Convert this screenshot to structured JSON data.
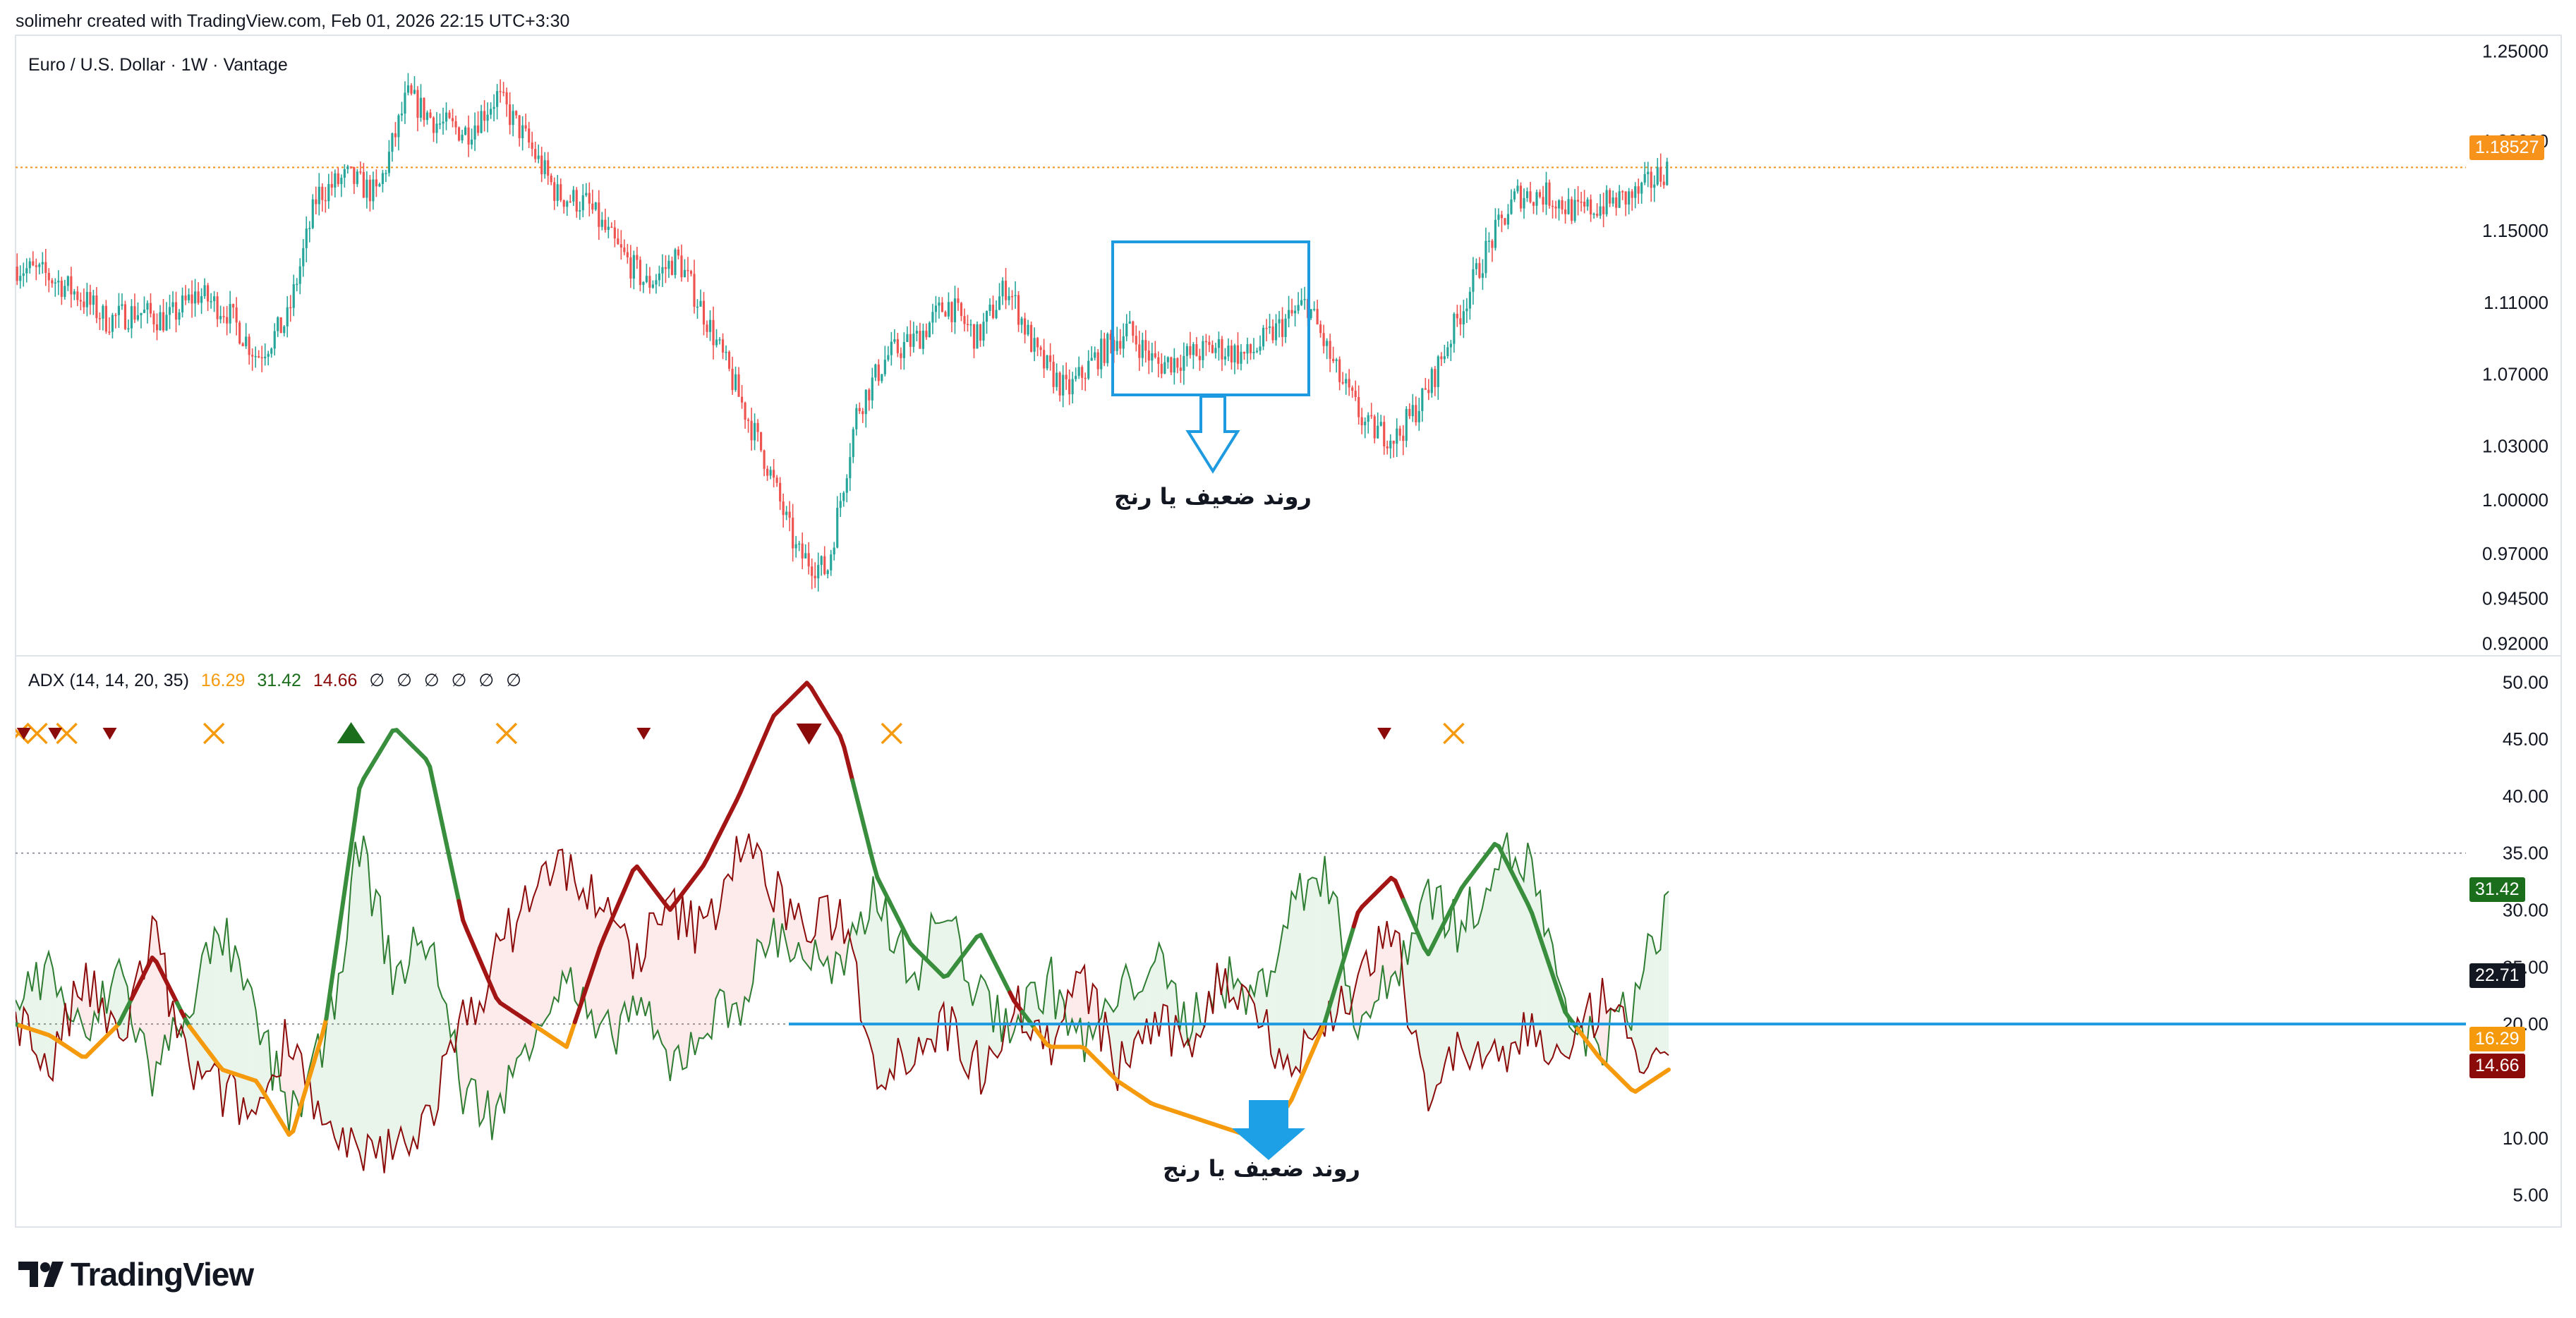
{
  "header": {
    "author_line": "solimehr created with TradingView.com, Feb 01, 2026 22:15 UTC+3:30"
  },
  "price_pane": {
    "symbol_line": "Euro / U.S. Dollar · 1W · Vantage"
  },
  "indicator_pane": {
    "name": "ADX (14, 14, 20, 35)",
    "values": [
      "16.29",
      "31.42",
      "14.66"
    ],
    "value_colors": [
      "#f59a0c",
      "#1b6e1b",
      "#8b0b0b"
    ],
    "empty_slots": [
      "∅",
      "∅",
      "∅",
      "∅",
      "∅",
      "∅"
    ]
  },
  "annotations": {
    "range_text_top": "روند ضعیف یا رنج",
    "range_text_bottom": "روند ضعیف یا رنج"
  },
  "brand": {
    "logo_text": "TradingView"
  },
  "colors": {
    "up": "#26a69a",
    "down": "#ef5350",
    "adx_trend_up": "#1b6e1b",
    "adx_trend_down": "#8b0b0b",
    "adx_weak": "#f59a0c",
    "box": "#1e9be0",
    "level_line": "#1e9be0"
  },
  "chart_data": [
    {
      "type": "candlestick",
      "title": "Euro / U.S. Dollar · 1W · Vantage",
      "y_ticks": [
        "1.25000",
        "1.20000",
        "1.15000",
        "1.11000",
        "1.07000",
        "1.03000",
        "1.00000",
        "0.97000",
        "0.94500",
        "0.92000"
      ],
      "ylim": [
        0.915,
        1.255
      ],
      "last_price": "1.18527",
      "path": [
        1.13,
        1.125,
        1.115,
        1.1,
        1.105,
        1.1,
        1.115,
        1.105,
        1.08,
        1.1,
        1.17,
        1.18,
        1.17,
        1.225,
        1.21,
        1.205,
        1.225,
        1.2,
        1.17,
        1.165,
        1.14,
        1.12,
        1.135,
        1.1,
        1.06,
        1.02,
        0.97,
        0.96,
        1.05,
        1.08,
        1.09,
        1.11,
        1.09,
        1.12,
        1.08,
        1.06,
        1.08,
        1.095,
        1.075,
        1.08,
        1.085,
        1.08,
        1.095,
        1.11,
        1.07,
        1.04,
        1.035,
        1.06,
        1.1,
        1.14,
        1.17,
        1.17,
        1.16,
        1.165,
        1.17,
        1.185
      ]
    },
    {
      "type": "line",
      "title": "ADX (14, 14, 20, 35)",
      "y_ticks": [
        "50.00",
        "45.00",
        "40.00",
        "35.00",
        "30.00",
        "25.00",
        "20.00",
        "10.00",
        "5.00"
      ],
      "ylim": [
        2.5,
        52
      ],
      "level_labels": [
        "31.42",
        "22.71",
        "16.29",
        "14.66"
      ],
      "series": [
        {
          "name": "",
          "values": [
            20,
            19,
            17,
            20,
            26,
            20,
            16,
            15,
            10,
            20,
            41,
            46,
            43,
            29,
            22,
            20,
            18,
            27,
            34,
            30,
            34,
            40,
            47,
            50,
            45,
            33,
            27,
            24,
            28,
            22,
            18,
            18,
            15,
            13,
            12,
            11,
            10,
            13,
            20,
            30,
            33,
            26,
            32,
            36,
            30,
            21,
            17,
            14,
            16
          ]
        },
        {
          "name": "",
          "values": [
            22,
            25,
            18,
            25,
            15,
            22,
            28,
            20,
            12,
            18,
            36,
            24,
            28,
            14,
            12,
            20,
            24,
            18,
            22,
            16,
            20,
            22,
            28,
            26,
            24,
            32,
            24,
            30,
            22,
            20,
            24,
            18,
            22,
            26,
            20,
            24,
            22,
            30,
            34,
            20,
            24,
            32,
            28,
            35,
            34,
            20,
            18,
            22,
            31
          ]
        },
        {
          "name": "",
          "values": [
            21,
            16,
            24,
            18,
            28,
            16,
            14,
            12,
            20,
            10,
            8,
            9,
            12,
            20,
            26,
            32,
            34,
            30,
            26,
            30,
            28,
            36,
            32,
            28,
            30,
            16,
            18,
            20,
            16,
            22,
            18,
            24,
            16,
            20,
            18,
            24,
            22,
            16,
            20,
            24,
            28,
            14,
            18,
            16,
            20,
            16,
            22,
            18,
            15
          ]
        }
      ],
      "markers": [
        {
          "kind": "cross",
          "x_frac": 0.002,
          "y": 45.5
        },
        {
          "kind": "cross",
          "x_frac": 0.013,
          "y": 45.5
        },
        {
          "kind": "cross",
          "x_frac": 0.031,
          "y": 45.5
        },
        {
          "kind": "down",
          "x_frac": 0.005,
          "y": 45.5
        },
        {
          "kind": "down",
          "x_frac": 0.024,
          "y": 45.5
        },
        {
          "kind": "down",
          "x_frac": 0.057,
          "y": 45.5
        },
        {
          "kind": "cross",
          "x_frac": 0.12,
          "y": 45.5
        },
        {
          "kind": "up",
          "x_frac": 0.203,
          "y": 45.5
        },
        {
          "kind": "cross",
          "x_frac": 0.297,
          "y": 45.5
        },
        {
          "kind": "down",
          "x_frac": 0.38,
          "y": 45.5
        },
        {
          "kind": "bigdown",
          "x_frac": 0.48,
          "y": 45.5
        },
        {
          "kind": "cross",
          "x_frac": 0.53,
          "y": 45.5
        },
        {
          "kind": "down",
          "x_frac": 0.828,
          "y": 45.5
        },
        {
          "kind": "cross",
          "x_frac": 0.87,
          "y": 45.5
        }
      ]
    }
  ]
}
